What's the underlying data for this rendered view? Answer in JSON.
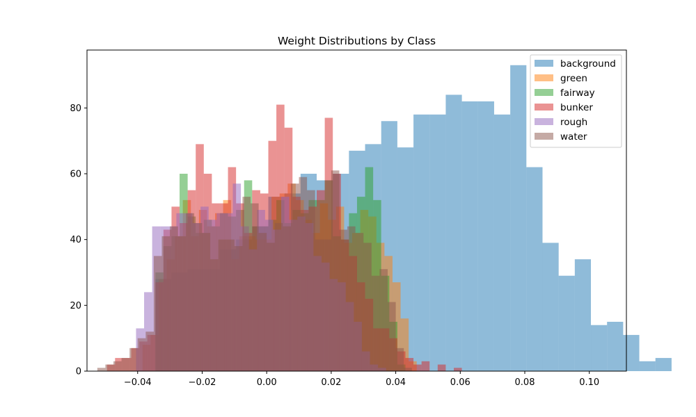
{
  "chart_data": {
    "type": "histogram",
    "title": "Weight Distributions by Class",
    "xlabel": "",
    "ylabel": "",
    "xlim": [
      -0.0557,
      0.1115
    ],
    "ylim": [
      0,
      97.6
    ],
    "x_ticks": [
      -0.04,
      -0.02,
      0.0,
      0.02,
      0.04,
      0.06,
      0.08,
      0.1
    ],
    "x_tick_labels": [
      "−0.04",
      "−0.02",
      "0.00",
      "0.02",
      "0.04",
      "0.06",
      "0.08",
      "0.10"
    ],
    "y_ticks": [
      0,
      20,
      40,
      60,
      80
    ],
    "y_tick_labels": [
      "0",
      "20",
      "40",
      "60",
      "80"
    ],
    "grid": false,
    "legend_position": "upper right",
    "bar_alpha": 0.5,
    "series": [
      {
        "name": "background",
        "color": "#1f77b4",
        "bin_start": -0.0345,
        "bin_width": 0.005,
        "counts": [
          28,
          30,
          31,
          31,
          37,
          40,
          44,
          53,
          54,
          60,
          58,
          60,
          67,
          69,
          76,
          68,
          78,
          78,
          84,
          82,
          82,
          78,
          93,
          62,
          39,
          29,
          34,
          14,
          15,
          11,
          3,
          4,
          0,
          0,
          2,
          0,
          2,
          1
        ]
      },
      {
        "name": "green",
        "color": "#ff7f0e",
        "bin_start": -0.0385,
        "bin_width": 0.0025,
        "counts": [
          8,
          11,
          28,
          34,
          41,
          52,
          41,
          49,
          44,
          48,
          52,
          34,
          41,
          41,
          40,
          40,
          53,
          54,
          57,
          52,
          46,
          42,
          51,
          46,
          50,
          39,
          42,
          49,
          47,
          39,
          35,
          27,
          16,
          3
        ]
      },
      {
        "name": "fairway",
        "color": "#2ca02c",
        "bin_start": -0.0345,
        "bin_width": 0.0025,
        "counts": [
          30,
          38,
          41,
          60,
          47,
          42,
          46,
          44,
          48,
          47,
          49,
          58,
          44,
          44,
          46,
          52,
          45,
          49,
          48,
          52,
          52,
          58,
          41,
          40,
          48,
          53,
          62,
          52,
          29,
          15,
          2
        ]
      },
      {
        "name": "bunker",
        "color": "#d62728",
        "bin_start": -0.0495,
        "bin_width": 0.0025,
        "counts": [
          2,
          4,
          4,
          7,
          9,
          11,
          27,
          43,
          50,
          45,
          55,
          69,
          60,
          51,
          51,
          62,
          51,
          42,
          55,
          54,
          70,
          81,
          74,
          53,
          49,
          50,
          55,
          77,
          60,
          40,
          35,
          27,
          22,
          13,
          13,
          10,
          6,
          4,
          2,
          3,
          0,
          2,
          0,
          1
        ]
      },
      {
        "name": "rough",
        "color": "#9467bd",
        "bin_start": -0.0405,
        "bin_width": 0.0025,
        "counts": [
          13,
          24,
          44,
          44,
          44,
          48,
          48,
          45,
          50,
          46,
          48,
          48,
          57,
          44,
          37,
          49,
          46,
          43,
          53,
          46,
          47,
          45,
          35,
          33,
          28,
          27,
          21,
          15,
          6,
          2,
          1
        ]
      },
      {
        "name": "water",
        "color": "#8c564b",
        "bin_start": -0.0525,
        "bin_width": 0.0025,
        "counts": [
          1,
          2,
          3,
          4,
          7,
          10,
          12,
          35,
          41,
          44,
          41,
          48,
          45,
          42,
          34,
          40,
          40,
          38,
          53,
          51,
          42,
          39,
          45,
          44,
          57,
          59,
          55,
          40,
          40,
          61,
          43,
          44,
          42,
          39,
          29,
          31,
          21,
          7,
          1
        ]
      }
    ]
  }
}
